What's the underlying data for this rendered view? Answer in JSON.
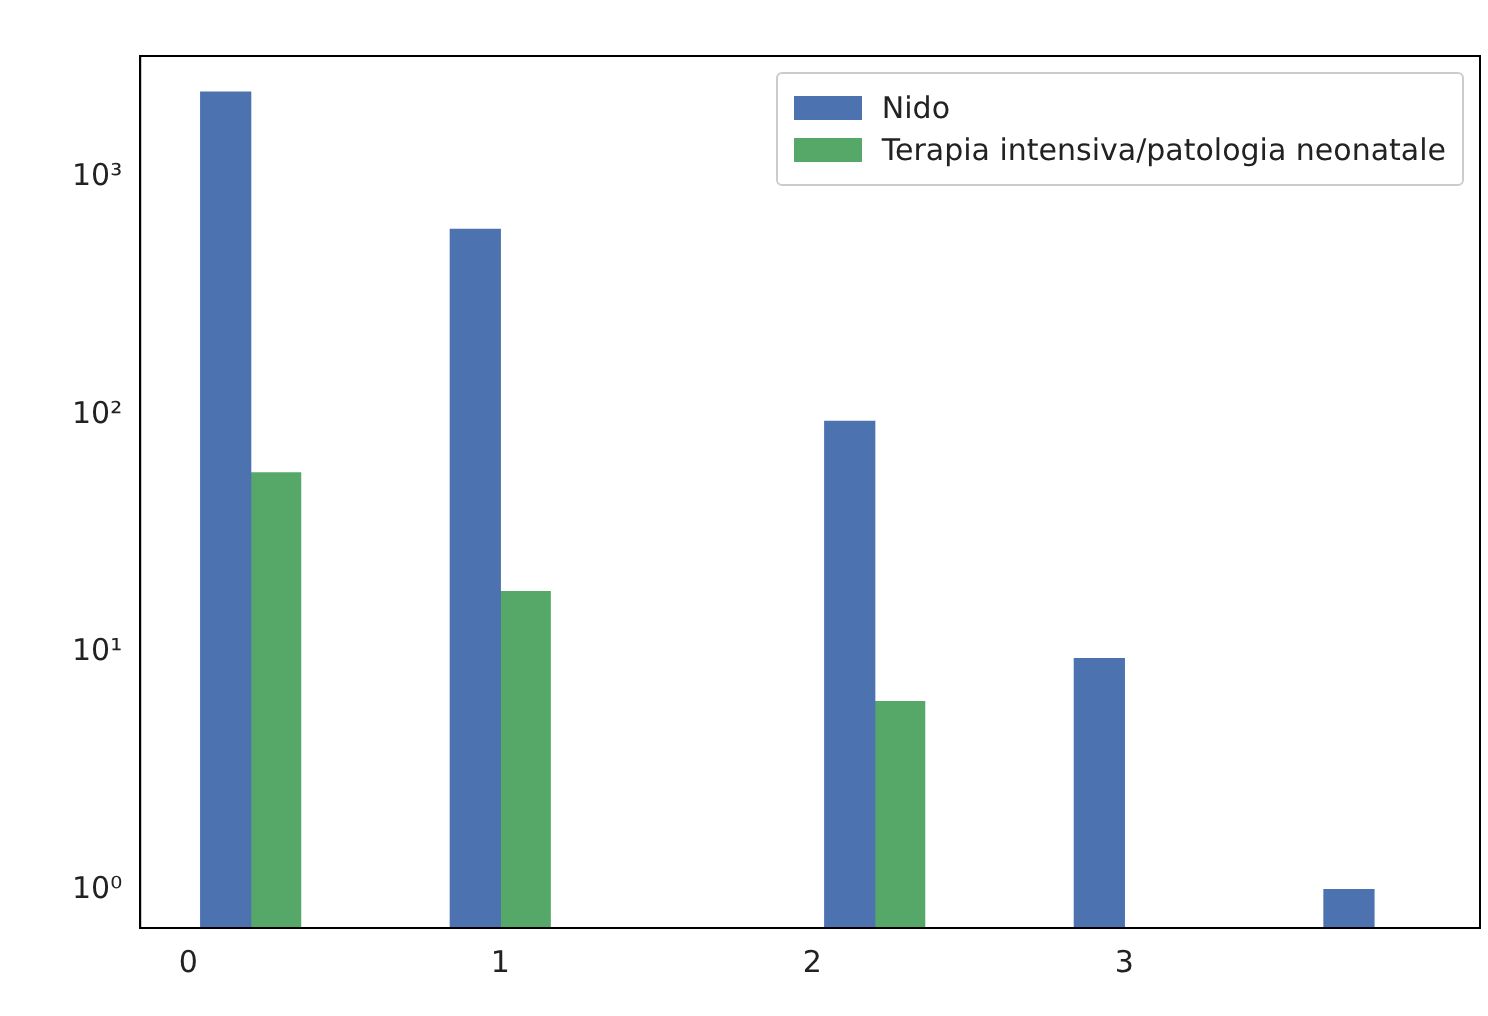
{
  "chart_data": {
    "type": "bar",
    "log": "y",
    "legend": "top right",
    "grid": false,
    "xlim": [
      -0.154,
      4.14
    ],
    "xticks": [
      0,
      1,
      2,
      3
    ],
    "ylim": [
      0.69,
      3250
    ],
    "yticks": [
      {
        "value": 1,
        "label": "10⁰"
      },
      {
        "value": 10,
        "label": "10¹"
      },
      {
        "value": 100,
        "label": "10²"
      },
      {
        "value": 1000,
        "label": "10³"
      }
    ],
    "series": [
      {
        "name": "Nido",
        "color": "#4c72b0",
        "x": [
          0.12,
          0.92,
          2.12,
          2.92,
          3.72
        ],
        "values": [
          2290,
          605,
          94,
          9.4,
          1
        ]
      },
      {
        "name": "Terapia intensiva/patologia neonatale",
        "color": "#55a868",
        "x": [
          0.28,
          1.08,
          2.28
        ],
        "values": [
          57,
          18,
          6.2
        ]
      }
    ]
  }
}
